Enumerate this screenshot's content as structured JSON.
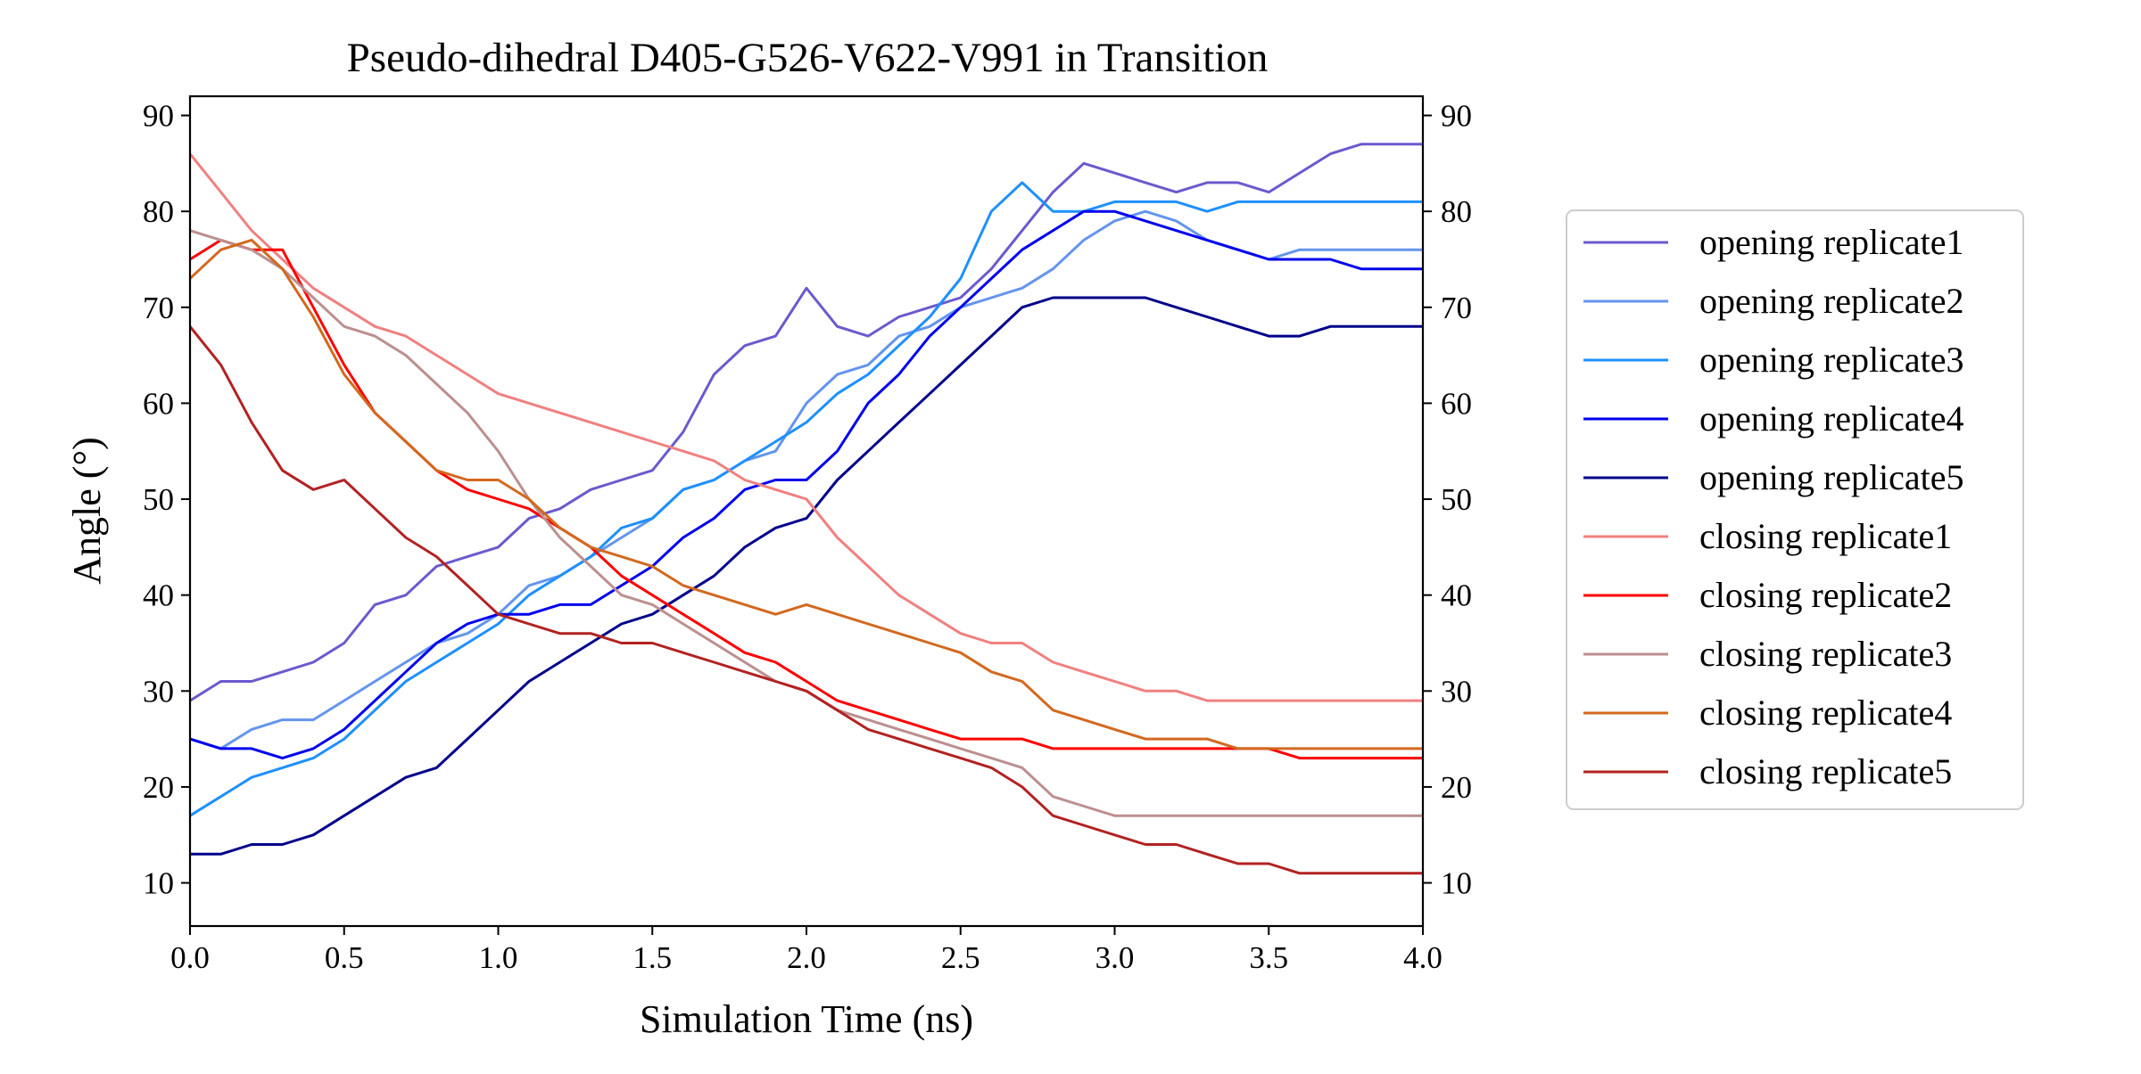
{
  "chart_data": {
    "type": "line",
    "title": "Pseudo-dihedral D405-G526-V622-V991 in Transition",
    "xlabel": "Simulation Time (ns)",
    "ylabel": "Angle (°)",
    "xlim": [
      0,
      4.0
    ],
    "ylim": [
      5.5,
      92
    ],
    "x_ticks": [
      0.0,
      0.5,
      1.0,
      1.5,
      2.0,
      2.5,
      3.0,
      3.5,
      4.0
    ],
    "x_tick_labels": [
      "0.0",
      "0.5",
      "1.0",
      "1.5",
      "2.0",
      "2.5",
      "3.0",
      "3.5",
      "4.0"
    ],
    "y_ticks": [
      10,
      20,
      30,
      40,
      50,
      60,
      70,
      80,
      90
    ],
    "y_tick_labels": [
      "10",
      "20",
      "30",
      "40",
      "50",
      "60",
      "70",
      "80",
      "90"
    ],
    "grid": false,
    "legend_position": "right, outside plot",
    "x": [
      0.0,
      0.1,
      0.2,
      0.3,
      0.4,
      0.5,
      0.6,
      0.7,
      0.8,
      0.9,
      1.0,
      1.1,
      1.2,
      1.3,
      1.4,
      1.5,
      1.6,
      1.7,
      1.8,
      1.9,
      2.0,
      2.1,
      2.2,
      2.3,
      2.4,
      2.5,
      2.6,
      2.7,
      2.8,
      2.9,
      3.0,
      3.1,
      3.2,
      3.3,
      3.4,
      3.5,
      3.6,
      3.7,
      3.8,
      3.9,
      4.0
    ],
    "series": [
      {
        "name": "opening replicate1",
        "color": "#6a5acd",
        "values": [
          29,
          31,
          31,
          32,
          33,
          35,
          39,
          40,
          43,
          44,
          45,
          48,
          49,
          51,
          52,
          53,
          57,
          63,
          66,
          67,
          72,
          68,
          67,
          69,
          70,
          71,
          74,
          78,
          82,
          85,
          84,
          83,
          82,
          83,
          83,
          82,
          84,
          86,
          87,
          87,
          87
        ]
      },
      {
        "name": "opening replicate2",
        "color": "#6495ed",
        "values": [
          25,
          24,
          26,
          27,
          27,
          29,
          31,
          33,
          35,
          36,
          38,
          41,
          42,
          44,
          46,
          48,
          51,
          52,
          54,
          55,
          60,
          63,
          64,
          67,
          68,
          70,
          71,
          72,
          74,
          77,
          79,
          80,
          79,
          77,
          76,
          75,
          76,
          76,
          76,
          76,
          76
        ]
      },
      {
        "name": "opening replicate3",
        "color": "#1e90ff",
        "values": [
          17,
          19,
          21,
          22,
          23,
          25,
          28,
          31,
          33,
          35,
          37,
          40,
          42,
          44,
          47,
          48,
          51,
          52,
          54,
          56,
          58,
          61,
          63,
          66,
          69,
          73,
          80,
          83,
          80,
          80,
          81,
          81,
          81,
          80,
          81,
          81,
          81,
          81,
          81,
          81,
          81
        ]
      },
      {
        "name": "opening replicate4",
        "color": "#0000ee",
        "values": [
          25,
          24,
          24,
          23,
          24,
          26,
          29,
          32,
          35,
          37,
          38,
          38,
          39,
          39,
          41,
          43,
          46,
          48,
          51,
          52,
          52,
          55,
          60,
          63,
          67,
          70,
          73,
          76,
          78,
          80,
          80,
          79,
          78,
          77,
          76,
          75,
          75,
          75,
          74,
          74,
          74
        ]
      },
      {
        "name": "opening replicate5",
        "color": "#00008b",
        "values": [
          13,
          13,
          14,
          14,
          15,
          17,
          19,
          21,
          22,
          25,
          28,
          31,
          33,
          35,
          37,
          38,
          40,
          42,
          45,
          47,
          48,
          52,
          55,
          58,
          61,
          64,
          67,
          70,
          71,
          71,
          71,
          71,
          70,
          69,
          68,
          67,
          67,
          68,
          68,
          68,
          68
        ]
      },
      {
        "name": "closing replicate1",
        "color": "#f08080",
        "values": [
          86,
          82,
          78,
          75,
          72,
          70,
          68,
          67,
          65,
          63,
          61,
          60,
          59,
          58,
          57,
          56,
          55,
          54,
          52,
          51,
          50,
          46,
          43,
          40,
          38,
          36,
          35,
          35,
          33,
          32,
          31,
          30,
          30,
          29,
          29,
          29,
          29,
          29,
          29,
          29,
          29
        ]
      },
      {
        "name": "closing replicate2",
        "color": "#ff0000",
        "values": [
          75,
          77,
          76,
          76,
          70,
          64,
          59,
          56,
          53,
          51,
          50,
          49,
          47,
          45,
          42,
          40,
          38,
          36,
          34,
          33,
          31,
          29,
          28,
          27,
          26,
          25,
          25,
          25,
          24,
          24,
          24,
          24,
          24,
          24,
          24,
          24,
          23,
          23,
          23,
          23,
          23
        ]
      },
      {
        "name": "closing replicate3",
        "color": "#bc8f8f",
        "values": [
          78,
          77,
          76,
          74,
          71,
          68,
          67,
          65,
          62,
          59,
          55,
          50,
          46,
          43,
          40,
          39,
          37,
          35,
          33,
          31,
          30,
          28,
          27,
          26,
          25,
          24,
          23,
          22,
          19,
          18,
          17,
          17,
          17,
          17,
          17,
          17,
          17,
          17,
          17,
          17,
          17
        ]
      },
      {
        "name": "closing replicate4",
        "color": "#d2691e",
        "values": [
          73,
          76,
          77,
          74,
          69,
          63,
          59,
          56,
          53,
          52,
          52,
          50,
          47,
          45,
          44,
          43,
          41,
          40,
          39,
          38,
          39,
          38,
          37,
          36,
          35,
          34,
          32,
          31,
          28,
          27,
          26,
          25,
          25,
          25,
          24,
          24,
          24,
          24,
          24,
          24,
          24
        ]
      },
      {
        "name": "closing replicate5",
        "color": "#b22222",
        "values": [
          68,
          64,
          58,
          53,
          51,
          52,
          49,
          46,
          44,
          41,
          38,
          37,
          36,
          36,
          35,
          35,
          34,
          33,
          32,
          31,
          30,
          28,
          26,
          25,
          24,
          23,
          22,
          20,
          17,
          16,
          15,
          14,
          14,
          13,
          12,
          12,
          11,
          11,
          11,
          11,
          11
        ]
      }
    ]
  }
}
